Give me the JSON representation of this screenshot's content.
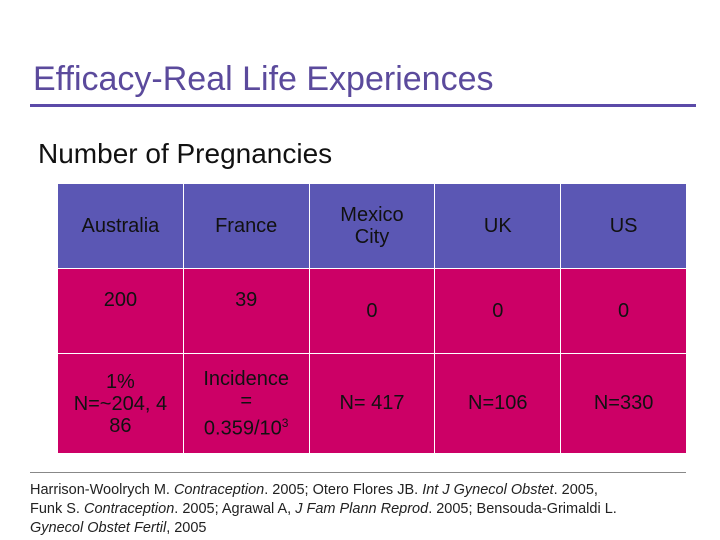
{
  "slide": {
    "title": "Efficacy-Real Life Experiences",
    "subtitle": "Number of Pregnancies"
  },
  "table": {
    "headers": [
      "Australia",
      "France",
      "Mexico City",
      "UK",
      "US"
    ],
    "pregnancies": [
      "200",
      "39",
      "0",
      "0",
      "0"
    ],
    "rates": {
      "australia_line1": "1%",
      "australia_line2": "N=~204, 4",
      "australia_line3": "86",
      "france_line1": "Incidence",
      "france_line2": "=",
      "france_line3": "0.359/10",
      "france_exp": "3",
      "mexico": "N= 417",
      "uk": "N=106",
      "us": "N=330"
    }
  },
  "footnote": {
    "a1": "Harrison-Woolrych M. ",
    "a1j": "Contraception",
    "a1y": ". 2005;  Otero Flores JB. ",
    "a2j": "Int J Gynecol Obstet",
    "a2y": ". 2005,",
    "b1": "Funk S. ",
    "b1j": "Contraception",
    "b1y": ". 2005;  Agrawal A, ",
    "b2j": "J Fam Plann Reprod",
    "b2y": ". 2005; Bensouda-Grimaldi L.",
    "c1j": "Gynecol Obstet Fertil",
    "c1y": ", 2005"
  },
  "colors": {
    "title": "#5b4a9c",
    "header_bg": "#5b57b4",
    "body_bg": "#cc0066"
  }
}
